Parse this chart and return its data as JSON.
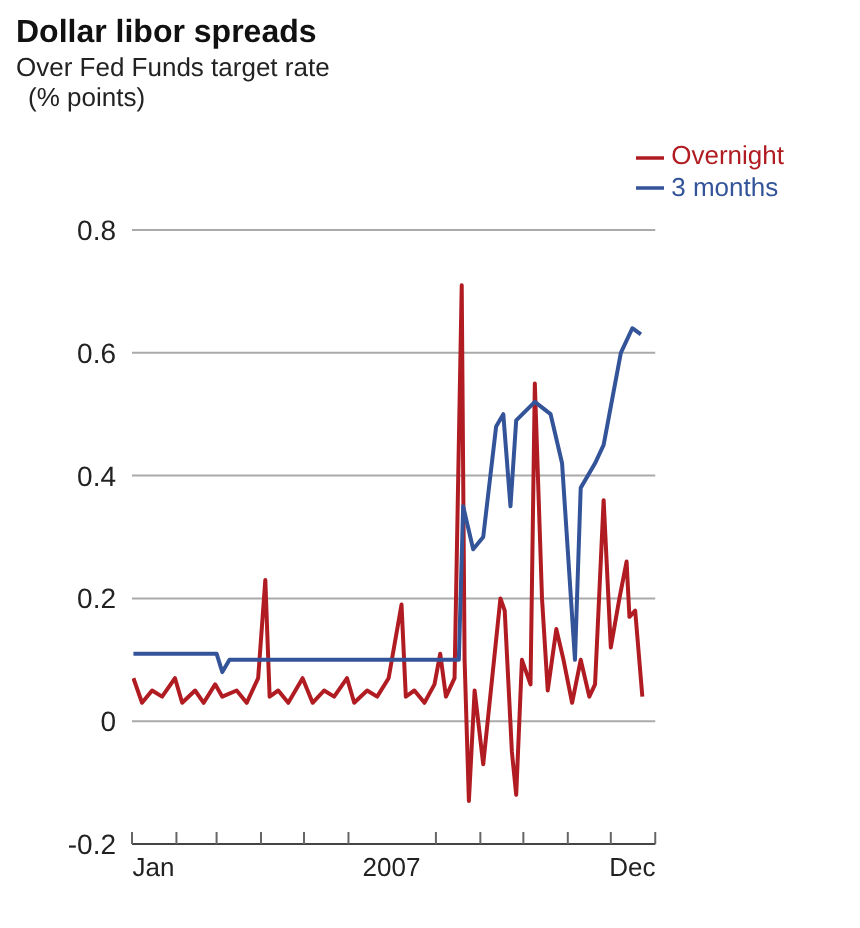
{
  "chart_data": {
    "type": "line",
    "title": "Dollar libor spreads",
    "subtitle": "Over Fed Funds target rate",
    "ylabel": "(% points)",
    "xlim": [
      "2007-01-01",
      "2008-01-01"
    ],
    "xticks": [
      {
        "value": "2007-01-01",
        "label": null
      },
      {
        "value": "2007-01-16",
        "label": "Jan"
      },
      {
        "value": "2007-02-01",
        "label": null
      },
      {
        "value": "2007-03-01",
        "label": null
      },
      {
        "value": "2007-04-01",
        "label": null
      },
      {
        "value": "2007-05-01",
        "label": null
      },
      {
        "value": "2007-06-01",
        "label": null
      },
      {
        "value": "2007-07-01",
        "label": "2007"
      },
      {
        "value": "2007-08-01",
        "label": null
      },
      {
        "value": "2007-09-01",
        "label": null
      },
      {
        "value": "2007-10-01",
        "label": null
      },
      {
        "value": "2007-11-01",
        "label": null
      },
      {
        "value": "2007-12-01",
        "label": null
      },
      {
        "value": "2007-12-16",
        "label": "Dec"
      },
      {
        "value": "2008-01-01",
        "label": null
      }
    ],
    "ylim": [
      -0.2,
      0.8
    ],
    "yticks": [
      -0.2,
      0,
      0.2,
      0.4,
      0.6,
      0.8
    ],
    "grid": "y",
    "legend": "top right",
    "series": [
      {
        "name": "Overnight",
        "color": "#b01c22",
        "x": [
          "2007-01-02",
          "2007-01-08",
          "2007-01-15",
          "2007-01-22",
          "2007-01-31",
          "2007-02-05",
          "2007-02-14",
          "2007-02-20",
          "2007-02-28",
          "2007-03-05",
          "2007-03-15",
          "2007-03-22",
          "2007-03-30",
          "2007-04-04",
          "2007-04-07",
          "2007-04-13",
          "2007-04-20",
          "2007-04-30",
          "2007-05-07",
          "2007-05-15",
          "2007-05-22",
          "2007-05-31",
          "2007-06-05",
          "2007-06-14",
          "2007-06-21",
          "2007-06-29",
          "2007-07-08",
          "2007-07-11",
          "2007-07-17",
          "2007-07-24",
          "2007-07-31",
          "2007-08-04",
          "2007-08-08",
          "2007-08-14",
          "2007-08-19",
          "2007-08-21",
          "2007-08-24",
          "2007-08-28",
          "2007-09-03",
          "2007-09-15",
          "2007-09-18",
          "2007-09-23",
          "2007-09-26",
          "2007-09-30",
          "2007-10-06",
          "2007-10-09",
          "2007-10-14",
          "2007-10-18",
          "2007-10-24",
          "2007-10-29",
          "2007-11-04",
          "2007-11-10",
          "2007-11-16",
          "2007-11-20",
          "2007-11-26",
          "2007-12-01",
          "2007-12-07",
          "2007-12-12",
          "2007-12-14",
          "2007-12-18",
          "2007-12-23"
        ],
        "values": [
          0.07,
          0.03,
          0.05,
          0.04,
          0.07,
          0.03,
          0.05,
          0.03,
          0.06,
          0.04,
          0.05,
          0.03,
          0.07,
          0.23,
          0.04,
          0.05,
          0.03,
          0.07,
          0.03,
          0.05,
          0.04,
          0.07,
          0.03,
          0.05,
          0.04,
          0.07,
          0.19,
          0.04,
          0.05,
          0.03,
          0.06,
          0.11,
          0.04,
          0.07,
          0.71,
          0.1,
          -0.13,
          0.05,
          -0.07,
          0.2,
          0.18,
          -0.05,
          -0.12,
          0.1,
          0.06,
          0.55,
          0.2,
          0.05,
          0.15,
          0.1,
          0.03,
          0.1,
          0.04,
          0.06,
          0.36,
          0.12,
          0.2,
          0.26,
          0.17,
          0.18,
          0.04
        ]
      },
      {
        "name": "3 months",
        "color": "#34549a",
        "x": [
          "2007-01-02",
          "2007-03-01",
          "2007-03-05",
          "2007-03-10",
          "2007-08-17",
          "2007-08-20",
          "2007-08-27",
          "2007-09-03",
          "2007-09-12",
          "2007-09-17",
          "2007-09-22",
          "2007-09-26",
          "2007-10-09",
          "2007-10-20",
          "2007-10-28",
          "2007-11-06",
          "2007-11-10",
          "2007-11-20",
          "2007-11-26",
          "2007-12-08",
          "2007-12-16",
          "2007-12-22"
        ],
        "values": [
          0.11,
          0.11,
          0.08,
          0.1,
          0.1,
          0.35,
          0.28,
          0.3,
          0.48,
          0.5,
          0.35,
          0.49,
          0.52,
          0.5,
          0.42,
          0.1,
          0.38,
          0.42,
          0.45,
          0.6,
          0.64,
          0.63
        ]
      }
    ]
  }
}
